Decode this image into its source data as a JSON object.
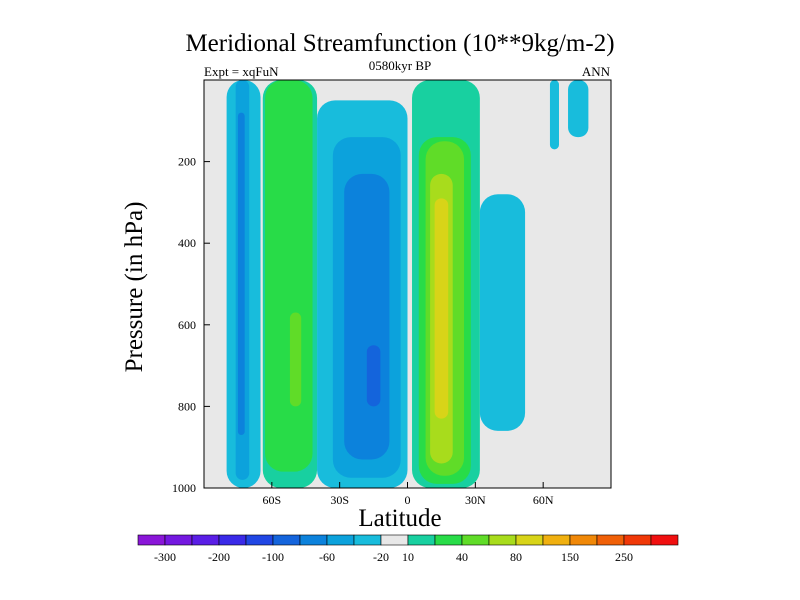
{
  "chart_data": {
    "type": "heatmap",
    "title": "Meridional Streamfunction (10**9kg/m-2)",
    "subtitle": "0580kyr BP",
    "left_label": "Expt = xqFuN",
    "right_label": "ANN",
    "xlabel": "Latitude",
    "ylabel": "Pressure (in hPa)",
    "xlim": [
      -90,
      90
    ],
    "ylim": [
      1000,
      0
    ],
    "x_ticks": [
      {
        "value": -60,
        "label": "60S"
      },
      {
        "value": -30,
        "label": "30S"
      },
      {
        "value": 0,
        "label": "0"
      },
      {
        "value": 30,
        "label": "30N"
      },
      {
        "value": 60,
        "label": "60N"
      }
    ],
    "y_ticks": [
      {
        "value": 200,
        "label": "200"
      },
      {
        "value": 400,
        "label": "400"
      },
      {
        "value": 600,
        "label": "600"
      },
      {
        "value": 800,
        "label": "800"
      },
      {
        "value": 1000,
        "label": "1000"
      }
    ],
    "colorbar": {
      "colors": [
        "#8a16d8",
        "#7418e0",
        "#5a1ee6",
        "#3a2ae8",
        "#2046e4",
        "#1464dc",
        "#0c82dc",
        "#0ca2dc",
        "#18bcdc",
        "#e8e8e8",
        "#18d0a0",
        "#28dc48",
        "#60dc28",
        "#a8dc1c",
        "#d8d418",
        "#f0b010",
        "#f08808",
        "#f06008",
        "#f03808",
        "#f01010"
      ],
      "labels": [
        {
          "after_box": 1,
          "text": "-300"
        },
        {
          "after_box": 3,
          "text": "-200"
        },
        {
          "after_box": 5,
          "text": "-100"
        },
        {
          "after_box": 7,
          "text": "-60"
        },
        {
          "after_box": 9,
          "text": "-20"
        },
        {
          "after_box": 10,
          "text": "10"
        },
        {
          "after_box": 12,
          "text": "40"
        },
        {
          "after_box": 14,
          "text": "80"
        },
        {
          "after_box": 16,
          "text": "150"
        },
        {
          "after_box": 18,
          "text": "250"
        }
      ]
    },
    "cells": [
      {
        "name": "sh-polar-negative-cell",
        "level": -20,
        "color": "#18bcdc",
        "lat_range": [
          -80,
          -65
        ],
        "p_range": [
          1000,
          0
        ]
      },
      {
        "name": "sh-polar-negative-core",
        "level": -60,
        "color": "#0ca2dc",
        "lat_range": [
          -76,
          -70
        ],
        "p_range": [
          980,
          0
        ]
      },
      {
        "name": "sh-polar-negative-inner",
        "level": -100,
        "color": "#0c82dc",
        "lat_range": [
          -75,
          -72
        ],
        "p_range": [
          870,
          80
        ]
      },
      {
        "name": "sh-ferrel-positive-cell",
        "level": 10,
        "color": "#18d0a0",
        "lat_range": [
          -64,
          -40
        ],
        "p_range": [
          1000,
          0
        ]
      },
      {
        "name": "sh-ferrel-positive-core",
        "level": 40,
        "color": "#28dc48",
        "lat_range": [
          -63,
          -42
        ],
        "p_range": [
          960,
          0
        ]
      },
      {
        "name": "sh-ferrel-positive-inner",
        "level": 80,
        "color": "#60dc28",
        "lat_range": [
          -52,
          -47
        ],
        "p_range": [
          800,
          570
        ]
      },
      {
        "name": "sh-hadley-negative-cell",
        "level": -20,
        "color": "#18bcdc",
        "lat_range": [
          -40,
          0
        ],
        "p_range": [
          1000,
          50
        ]
      },
      {
        "name": "sh-hadley-negative-mid",
        "level": -60,
        "color": "#0ca2dc",
        "lat_range": [
          -33,
          -3
        ],
        "p_range": [
          975,
          140
        ]
      },
      {
        "name": "sh-hadley-negative-core",
        "level": -100,
        "color": "#0c82dc",
        "lat_range": [
          -28,
          -8
        ],
        "p_range": [
          930,
          230
        ]
      },
      {
        "name": "sh-hadley-negative-inner",
        "level": -200,
        "color": "#1464dc",
        "lat_range": [
          -18,
          -12
        ],
        "p_range": [
          800,
          650
        ]
      },
      {
        "name": "nh-hadley-positive-cell",
        "level": 10,
        "color": "#18d0a0",
        "lat_range": [
          2,
          32
        ],
        "p_range": [
          1000,
          0
        ]
      },
      {
        "name": "nh-hadley-positive-mid",
        "level": 40,
        "color": "#28dc48",
        "lat_range": [
          5,
          28
        ],
        "p_range": [
          990,
          140
        ]
      },
      {
        "name": "nh-hadley-positive-core",
        "level": 80,
        "color": "#60dc28",
        "lat_range": [
          8,
          25
        ],
        "p_range": [
          970,
          150
        ]
      },
      {
        "name": "nh-hadley-positive-inner",
        "level": 150,
        "color": "#a8dc1c",
        "lat_range": [
          10,
          20
        ],
        "p_range": [
          940,
          230
        ]
      },
      {
        "name": "nh-hadley-positive-peak",
        "level": 250,
        "color": "#d8d418",
        "lat_range": [
          12,
          18
        ],
        "p_range": [
          830,
          290
        ]
      },
      {
        "name": "nh-ferrel-negative-cell",
        "level": -20,
        "color": "#18bcdc",
        "lat_range": [
          32,
          52
        ],
        "p_range": [
          860,
          280
        ]
      },
      {
        "name": "nh-high-lat-negative-cell-1",
        "level": -20,
        "color": "#18bcdc",
        "lat_range": [
          63,
          67
        ],
        "p_range": [
          170,
          0
        ]
      },
      {
        "name": "nh-high-lat-negative-cell-2",
        "level": -20,
        "color": "#18bcdc",
        "lat_range": [
          71,
          80
        ],
        "p_range": [
          140,
          0
        ]
      }
    ]
  }
}
